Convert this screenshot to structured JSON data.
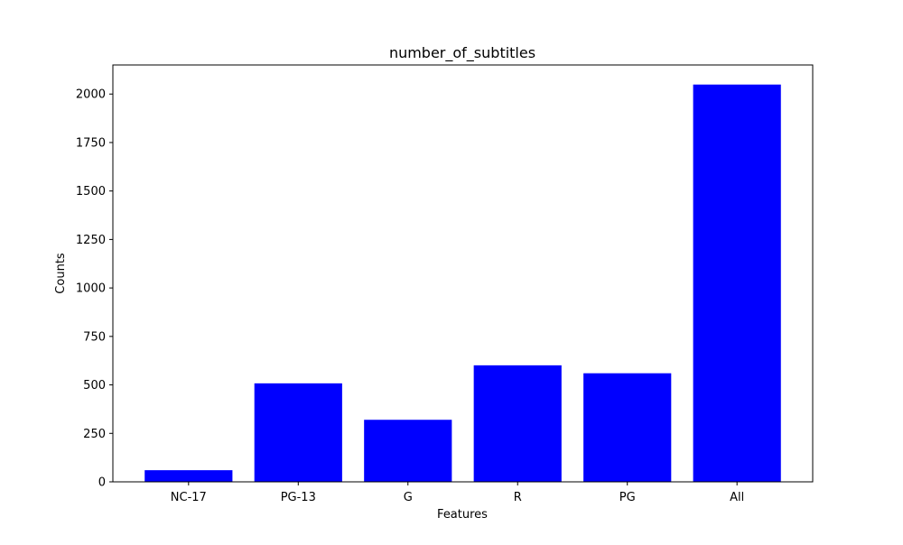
{
  "chart_data": {
    "type": "bar",
    "title": "number_of_subtitles",
    "xlabel": "Features",
    "ylabel": "Counts",
    "categories": [
      "NC-17",
      "PG-13",
      "G",
      "R",
      "PG",
      "All"
    ],
    "values": [
      60,
      508,
      320,
      601,
      560,
      2049
    ],
    "ylim": [
      0,
      2150
    ],
    "yticks": [
      0,
      250,
      500,
      750,
      1000,
      1250,
      1500,
      1750,
      2000
    ],
    "bar_color": "#0000ff",
    "grid": false,
    "legend": "none"
  }
}
